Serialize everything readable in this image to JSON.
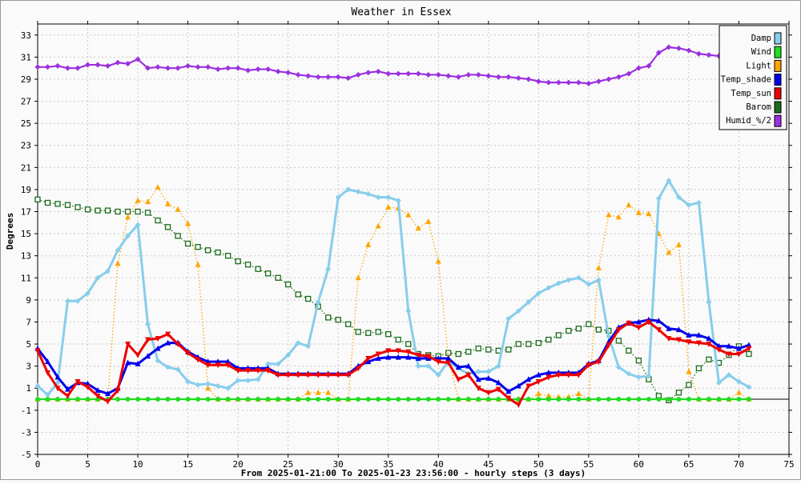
{
  "chart_data": {
    "type": "line",
    "title": "Weather in Essex",
    "xlabel": "From 2025-01-21:00 To 2025-01-23 23:56:00 - hourly steps (3 days)",
    "ylabel": "Degrees",
    "xlim": [
      0,
      75
    ],
    "ylim": [
      -5,
      34
    ],
    "xticks": [
      "0",
      "5",
      "10",
      "15",
      "20",
      "25",
      "30",
      "35",
      "40",
      "45",
      "50",
      "55",
      "60",
      "65",
      "70",
      "75"
    ],
    "yticks": [
      "-5",
      "-3",
      "-1",
      "1",
      "3",
      "5",
      "7",
      "9",
      "11",
      "13",
      "15",
      "17",
      "19",
      "21",
      "23",
      "25",
      "27",
      "29",
      "31",
      "33"
    ],
    "grid": true,
    "legend_position": "top-right",
    "x": [
      0,
      1,
      2,
      3,
      4,
      5,
      6,
      7,
      8,
      9,
      10,
      11,
      12,
      13,
      14,
      15,
      16,
      17,
      18,
      19,
      20,
      21,
      22,
      23,
      24,
      25,
      26,
      27,
      28,
      29,
      30,
      31,
      32,
      33,
      34,
      35,
      36,
      37,
      38,
      39,
      40,
      41,
      42,
      43,
      44,
      45,
      46,
      47,
      48,
      49,
      50,
      51,
      52,
      53,
      54,
      55,
      56,
      57,
      58,
      59,
      60,
      61,
      62,
      63,
      64,
      65,
      66,
      67,
      68,
      69,
      70,
      71
    ],
    "series": [
      {
        "name": "Damp",
        "color": "#87ceeb",
        "marker": "diamond",
        "style": "solid",
        "values": [
          1.2,
          0.4,
          1.5,
          8.9,
          8.9,
          9.6,
          11.0,
          11.6,
          13.5,
          14.8,
          15.8,
          6.8,
          3.5,
          2.9,
          2.7,
          1.6,
          1.3,
          1.4,
          1.2,
          1.0,
          1.7,
          1.7,
          1.8,
          3.2,
          3.2,
          4.0,
          5.1,
          4.8,
          8.8,
          11.8,
          18.3,
          19.0,
          18.8,
          18.6,
          18.3,
          18.3,
          18.0,
          8.0,
          3.0,
          3.0,
          2.2,
          3.4,
          2.8,
          2.3,
          2.5,
          2.5,
          3.0,
          7.3,
          8.0,
          8.8,
          9.6,
          10.1,
          10.5,
          10.8,
          11.0,
          10.4,
          10.8,
          5.7,
          2.9,
          2.3,
          2.0,
          2.1,
          18.2,
          19.8,
          18.3,
          17.6,
          17.8,
          8.8,
          1.5,
          2.2,
          1.6,
          1.1
        ]
      },
      {
        "name": "Wind",
        "color": "#22dd22",
        "marker": "circle",
        "style": "solid",
        "values": [
          0,
          0,
          0,
          0,
          0,
          0,
          0,
          0,
          0,
          0,
          0,
          0,
          0,
          0,
          0,
          0,
          0,
          0,
          0,
          0,
          0,
          0,
          0,
          0,
          0,
          0,
          0,
          0,
          0,
          0,
          0,
          0,
          0,
          0,
          0,
          0,
          0,
          0,
          0,
          0,
          0,
          0,
          0,
          0,
          0,
          0,
          0,
          0,
          0,
          0,
          0,
          0,
          0,
          0,
          0,
          0,
          0,
          0,
          0,
          0,
          0,
          0,
          0,
          0,
          0,
          0,
          0,
          0,
          0,
          0,
          0,
          0
        ]
      },
      {
        "name": "Light",
        "color": "#ffa500",
        "marker": "triangle-up",
        "style": "dotted",
        "values": [
          0,
          0,
          0,
          0,
          0,
          0,
          0,
          0,
          12.3,
          16.5,
          18.0,
          17.9,
          19.2,
          17.7,
          17.2,
          15.9,
          12.2,
          1.0,
          0,
          0,
          0,
          0,
          0,
          0,
          0,
          0,
          0,
          0.6,
          0.6,
          0.6,
          0,
          0,
          11.0,
          14.0,
          15.7,
          17.4,
          17.3,
          16.7,
          15.5,
          16.1,
          12.5,
          3.8,
          0,
          0,
          0,
          0,
          0,
          0,
          0,
          0,
          0.5,
          0.3,
          0.2,
          0.2,
          0.5,
          0,
          11.9,
          16.7,
          16.5,
          17.6,
          16.9,
          16.8,
          15.0,
          13.3,
          14.0,
          2.5,
          0,
          0,
          0,
          0,
          0.6,
          0
        ]
      },
      {
        "name": "Temp_shade",
        "color": "#0000ee",
        "marker": "triangle-up",
        "style": "solid",
        "values": [
          4.6,
          3.4,
          2.0,
          0.9,
          1.5,
          1.4,
          0.8,
          0.5,
          1.0,
          3.3,
          3.2,
          3.9,
          4.6,
          5.1,
          5.1,
          4.3,
          3.8,
          3.4,
          3.4,
          3.4,
          2.8,
          2.8,
          2.8,
          2.8,
          2.3,
          2.3,
          2.3,
          2.3,
          2.3,
          2.3,
          2.3,
          2.3,
          3.0,
          3.4,
          3.7,
          3.8,
          3.8,
          3.8,
          3.7,
          3.7,
          3.7,
          3.7,
          2.9,
          3.0,
          1.8,
          1.9,
          1.5,
          0.7,
          1.2,
          1.8,
          2.2,
          2.4,
          2.4,
          2.4,
          2.4,
          3.2,
          3.5,
          5.2,
          6.5,
          6.9,
          7.0,
          7.2,
          7.1,
          6.4,
          6.3,
          5.8,
          5.8,
          5.5,
          4.8,
          4.8,
          4.6,
          4.9
        ]
      },
      {
        "name": "Temp_sun",
        "color": "#ee0000",
        "marker": "triangle-down",
        "style": "solid",
        "values": [
          4.4,
          2.4,
          1.0,
          0.3,
          1.6,
          1.1,
          0.3,
          -0.2,
          0.8,
          5.0,
          4.0,
          5.4,
          5.5,
          5.9,
          5.0,
          4.2,
          3.6,
          3.1,
          3.1,
          3.1,
          2.6,
          2.6,
          2.6,
          2.6,
          2.2,
          2.2,
          2.2,
          2.2,
          2.2,
          2.2,
          2.2,
          2.2,
          2.8,
          3.7,
          4.1,
          4.4,
          4.4,
          4.3,
          4.0,
          3.9,
          3.4,
          3.3,
          1.8,
          2.2,
          1.0,
          0.6,
          0.9,
          0.1,
          -0.5,
          1.2,
          1.6,
          2.0,
          2.2,
          2.2,
          2.2,
          3.1,
          3.4,
          4.9,
          6.3,
          6.9,
          6.5,
          7.0,
          6.3,
          5.5,
          5.4,
          5.2,
          5.1,
          5.0,
          4.5,
          4.1,
          4.1,
          4.6
        ]
      },
      {
        "name": "Barom",
        "color": "#1a6b1a",
        "marker": "square",
        "style": "dotted",
        "values": [
          18.1,
          17.8,
          17.7,
          17.6,
          17.4,
          17.2,
          17.1,
          17.1,
          17.0,
          17.0,
          17.0,
          16.9,
          16.2,
          15.6,
          14.8,
          14.1,
          13.8,
          13.5,
          13.3,
          13.0,
          12.5,
          12.2,
          11.8,
          11.4,
          11.0,
          10.4,
          9.5,
          9.1,
          8.4,
          7.4,
          7.2,
          6.8,
          6.1,
          6.0,
          6.1,
          5.9,
          5.4,
          5.0,
          4.1,
          4.0,
          3.9,
          4.2,
          4.1,
          4.3,
          4.6,
          4.5,
          4.4,
          4.5,
          5.0,
          5.0,
          5.1,
          5.4,
          5.8,
          6.2,
          6.4,
          6.8,
          6.3,
          6.2,
          5.3,
          4.4,
          3.5,
          1.8,
          0.3,
          -0.1,
          0.6,
          1.3,
          2.8,
          3.6,
          3.3,
          4.0,
          4.8,
          4.1
        ]
      },
      {
        "name": "Humid_%/2",
        "color": "#9b30e0",
        "marker": "diamond",
        "style": "solid",
        "values": [
          30.1,
          30.1,
          30.2,
          30.0,
          30.0,
          30.3,
          30.3,
          30.2,
          30.5,
          30.4,
          30.8,
          30.0,
          30.1,
          30.0,
          30.0,
          30.2,
          30.1,
          30.1,
          29.9,
          30.0,
          30.0,
          29.8,
          29.9,
          29.9,
          29.7,
          29.6,
          29.4,
          29.3,
          29.2,
          29.2,
          29.2,
          29.1,
          29.4,
          29.6,
          29.7,
          29.5,
          29.5,
          29.5,
          29.5,
          29.4,
          29.4,
          29.3,
          29.2,
          29.4,
          29.4,
          29.3,
          29.2,
          29.2,
          29.1,
          29.0,
          28.8,
          28.7,
          28.7,
          28.7,
          28.7,
          28.6,
          28.8,
          29.0,
          29.2,
          29.5,
          30.0,
          30.2,
          31.4,
          31.9,
          31.8,
          31.6,
          31.3,
          31.2,
          31.1,
          null,
          null,
          null
        ]
      }
    ]
  }
}
